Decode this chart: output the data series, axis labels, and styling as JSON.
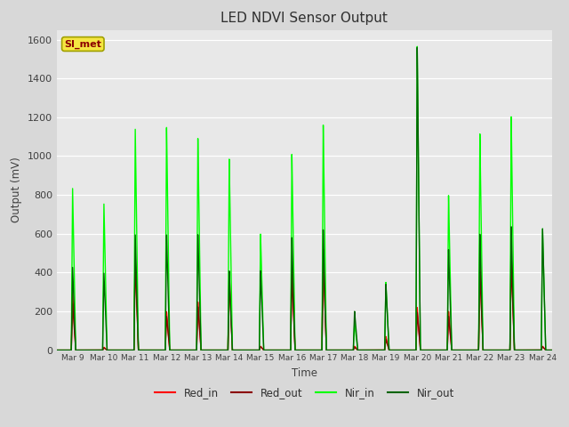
{
  "title": "LED NDVI Sensor Output",
  "xlabel": "Time",
  "ylabel": "Output (mV)",
  "ylim": [
    0,
    1650
  ],
  "yticks": [
    0,
    200,
    400,
    600,
    800,
    1000,
    1200,
    1400,
    1600
  ],
  "xtick_labels": [
    "Mar 9",
    "Mar 10",
    "Mar 11",
    "Mar 12",
    "Mar 13",
    "Mar 14",
    "Mar 15",
    "Mar 16",
    "Mar 17",
    "Mar 18",
    "Mar 19",
    "Mar 20",
    "Mar 21",
    "Mar 22",
    "Mar 23",
    "Mar 24"
  ],
  "legend_label": "SI_met",
  "legend_box_color": "#f5e642",
  "legend_text_color": "#8b0000",
  "bg_color": "#e8e8e8",
  "fig_bg_color": "#d8d8d8",
  "series": {
    "Red_in": {
      "color": "#ff0000",
      "lw": 1.0
    },
    "Red_out": {
      "color": "#8b0000",
      "lw": 1.0
    },
    "Nir_in": {
      "color": "#00ff00",
      "lw": 1.0
    },
    "Nir_out": {
      "color": "#006400",
      "lw": 1.0
    }
  },
  "x": [
    9,
    10,
    11,
    12,
    13,
    14,
    15,
    16,
    17,
    18,
    19,
    20,
    21,
    22,
    23,
    24
  ],
  "peaks": {
    "Red_in": [
      300,
      15,
      500,
      200,
      250,
      400,
      20,
      430,
      520,
      20,
      70,
      220,
      200,
      450,
      500,
      20
    ],
    "Red_out": [
      240,
      12,
      470,
      175,
      225,
      360,
      18,
      390,
      480,
      15,
      55,
      195,
      175,
      410,
      460,
      18
    ],
    "Nir_in": [
      840,
      760,
      1150,
      1160,
      1100,
      990,
      600,
      1010,
      1160,
      140,
      350,
      1570,
      800,
      1120,
      1210,
      630
    ],
    "Nir_out": [
      430,
      400,
      600,
      600,
      600,
      410,
      410,
      580,
      620,
      200,
      340,
      1565,
      520,
      600,
      640,
      630
    ]
  },
  "pulse_rise": 0.04,
  "pulse_fall": 0.1
}
